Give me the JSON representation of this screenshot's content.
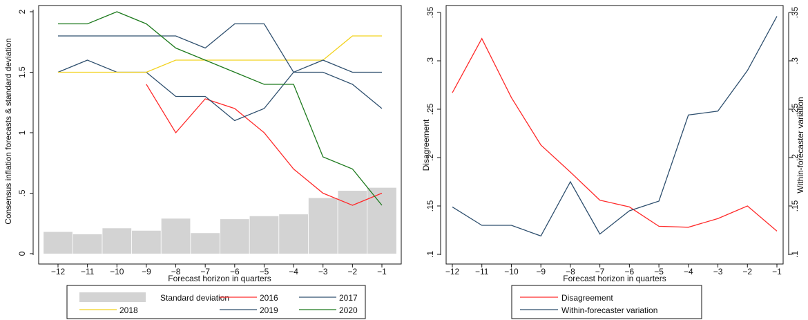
{
  "chart_data": [
    {
      "type": "line",
      "xlabel": "Forecast horizon in quarters",
      "ylabel": "Consensus inflation forecasts & standard deviation",
      "x": [
        -12,
        -11,
        -10,
        -9,
        -8,
        -7,
        -6,
        -5,
        -4,
        -3,
        -2,
        -1
      ],
      "xticks": [
        "-12",
        "-11",
        "-10",
        "-9",
        "-8",
        "-7",
        "-6",
        "-5",
        "-4",
        "-3",
        "-2",
        "-1"
      ],
      "ylim": [
        0,
        2
      ],
      "yticks": [
        {
          "v": 0,
          "label": "0"
        },
        {
          "v": 0.5,
          "label": ".5"
        },
        {
          "v": 1,
          "label": "1"
        },
        {
          "v": 1.5,
          "label": "1.5"
        },
        {
          "v": 2,
          "label": "2"
        }
      ],
      "bars": {
        "name": "Standard deviation",
        "color": "#d3d3d3",
        "values": [
          0.18,
          0.16,
          0.21,
          0.19,
          0.29,
          0.17,
          0.285,
          0.31,
          0.325,
          0.46,
          0.52,
          0.545
        ]
      },
      "series": [
        {
          "name": "2016",
          "color": "#ff2a2a",
          "values": [
            null,
            null,
            null,
            1.4,
            1.0,
            1.28,
            1.2,
            1.0,
            0.7,
            0.5,
            0.4,
            0.5
          ]
        },
        {
          "name": "2017",
          "color": "#2e4f6e",
          "values": [
            1.5,
            1.6,
            1.5,
            1.5,
            1.3,
            1.3,
            1.1,
            1.2,
            1.5,
            1.5,
            1.4,
            1.2
          ]
        },
        {
          "name": "2018",
          "color": "#f2d21f",
          "values": [
            1.5,
            1.5,
            1.5,
            1.5,
            1.6,
            1.6,
            1.6,
            1.6,
            1.6,
            1.6,
            1.8,
            1.8
          ]
        },
        {
          "name": "2019",
          "color": "#2e4f6e",
          "values": [
            1.8,
            1.8,
            1.8,
            1.8,
            1.8,
            1.7,
            1.9,
            1.9,
            1.5,
            1.6,
            1.5,
            1.5
          ]
        },
        {
          "name": "2020",
          "color": "#1d7a1d",
          "values": [
            1.9,
            1.9,
            2.0,
            1.9,
            1.7,
            1.6,
            1.5,
            1.4,
            1.4,
            0.8,
            0.7,
            0.4
          ]
        }
      ],
      "legend": [
        "Standard deviation",
        "2016",
        "2017",
        "2018",
        "2019",
        "2020"
      ]
    },
    {
      "type": "line",
      "xlabel": "Forecast horizon in quarters",
      "ylabel": "Disagreement",
      "ylabel_right": "Within-forecaster variation",
      "x": [
        -12,
        -11,
        -10,
        -9,
        -8,
        -7,
        -6,
        -5,
        -4,
        -3,
        -2,
        -1
      ],
      "xticks": [
        "-12",
        "-11",
        "-10",
        "-9",
        "-8",
        "-7",
        "-6",
        "-5",
        "-4",
        "-3",
        "-2",
        "-1"
      ],
      "ylim": [
        0.1,
        0.35
      ],
      "yticks": [
        {
          "v": 0.1,
          "label": ".1"
        },
        {
          "v": 0.15,
          "label": ".15"
        },
        {
          "v": 0.2,
          "label": ".2"
        },
        {
          "v": 0.25,
          "label": ".25"
        },
        {
          "v": 0.3,
          "label": ".3"
        },
        {
          "v": 0.35,
          "label": ".35"
        }
      ],
      "series": [
        {
          "name": "Disagreement",
          "color": "#ff2a2a",
          "values": [
            0.267,
            0.323,
            0.262,
            0.213,
            0.185,
            0.156,
            0.149,
            0.129,
            0.128,
            0.137,
            0.15,
            0.124
          ]
        },
        {
          "name": "Within-forecaster variation",
          "color": "#2e4f6e",
          "values": [
            0.149,
            0.13,
            0.13,
            0.119,
            0.175,
            0.121,
            0.145,
            0.155,
            0.244,
            0.248,
            0.29,
            0.346
          ]
        }
      ],
      "legend": [
        "Disagreement",
        "Within-forecaster variation"
      ]
    }
  ]
}
